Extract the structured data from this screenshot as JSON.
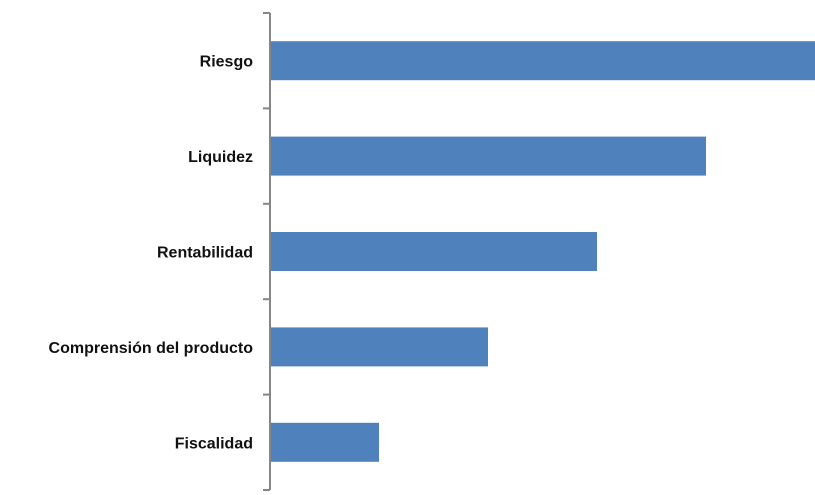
{
  "chart_data": {
    "type": "bar",
    "orientation": "horizontal",
    "title": "",
    "xlabel": "",
    "ylabel": "",
    "categories": [
      "Riesgo",
      "Liquidez",
      "Rentabilidad",
      "Comprensión del producto",
      "Fiscalidad"
    ],
    "values": [
      5,
      4,
      3,
      2,
      1
    ],
    "xlim": [
      0,
      5
    ],
    "grid": false,
    "legend": "none",
    "colors": {
      "bar": "#4F81BD",
      "axis": "#868686",
      "text": "#111111"
    }
  }
}
